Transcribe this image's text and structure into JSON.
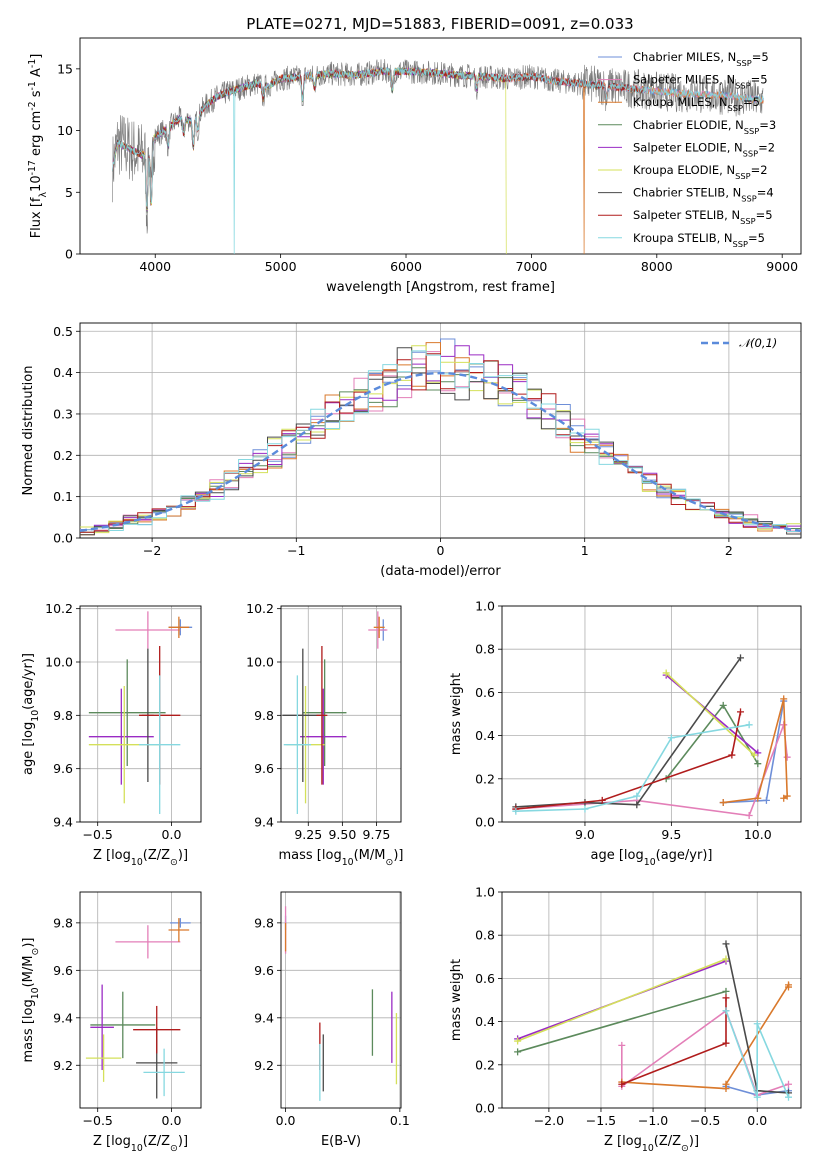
{
  "title": "PLATE=0271, MJD=51883, FIBERID=0091, z=0.033",
  "colors": {
    "Chabrier MILES": "#6e8fd8",
    "Salpeter MILES": "#e37fb8",
    "Kroupa MILES": "#d9792c",
    "Chabrier ELODIE": "#5c8a5c",
    "Salpeter ELODIE": "#9a2bc4",
    "Kroupa ELODIE": "#d4e05a",
    "Chabrier STELIB": "#4a4a4a",
    "Salpeter STELIB": "#b01c1c",
    "Kroupa STELIB": "#86d8e0",
    "normal": "#5b8bdb",
    "grid": "#b0b0b0"
  },
  "chart_data": [
    {
      "id": "spectrum",
      "type": "line",
      "xlabel": "wavelength [Angstrom, rest frame]",
      "ylabel": "Flux [f$_\\lambda$$10^{-17}$ erg cm$^{-2}$ s$^{-1}$ A$^{-1}$]",
      "xlim": [
        3400,
        9150
      ],
      "ylim": [
        0,
        17.5
      ],
      "xticks": [
        4000,
        5000,
        6000,
        7000,
        8000,
        9000
      ],
      "yticks": [
        0,
        5,
        10,
        15
      ],
      "grid": false,
      "legend_position": "top-right",
      "continuum": {
        "x": [
          3650,
          3700,
          3800,
          3900,
          4000,
          4100,
          4200,
          4300,
          4400,
          4500,
          4600,
          4700,
          4800,
          4900,
          5000,
          5200,
          5400,
          5600,
          5800,
          6000,
          6200,
          6400,
          6600,
          6800,
          7000,
          7200,
          7400,
          7600,
          7800,
          8000,
          8200,
          8400,
          8600,
          8800
        ],
        "y": [
          6.5,
          9.0,
          8.5,
          8.0,
          9.5,
          10.2,
          11.0,
          10.8,
          12.0,
          12.8,
          13.2,
          13.5,
          13.8,
          13.6,
          14.2,
          14.4,
          14.6,
          14.5,
          14.8,
          14.8,
          14.7,
          14.5,
          14.4,
          14.2,
          14.4,
          14.0,
          13.8,
          13.6,
          13.4,
          13.2,
          13.0,
          12.9,
          12.8,
          12.5
        ]
      },
      "series": [
        {
          "name": "Chabrier MILES, N$_{SSP}$=5",
          "xrange": [
            3660,
            8850
          ]
        },
        {
          "name": "Salpeter MILES, N$_{SSP}$=5",
          "xrange": [
            3660,
            8850
          ]
        },
        {
          "name": "Kroupa MILES, N$_{SSP}$=5",
          "xrange": [
            3660,
            8850
          ],
          "dropout_at": 7420
        },
        {
          "name": "Chabrier ELODIE, N$_{SSP}$=3",
          "xrange": [
            3660,
            6800
          ]
        },
        {
          "name": "Salpeter ELODIE, N$_{SSP}$=2",
          "xrange": [
            3660,
            6800
          ]
        },
        {
          "name": "Kroupa ELODIE, N$_{SSP}$=2",
          "xrange": [
            3660,
            6800
          ],
          "dropout_at": 6800
        },
        {
          "name": "Chabrier STELIB, N$_{SSP}$=4",
          "xrange": [
            3660,
            7900
          ]
        },
        {
          "name": "Salpeter STELIB, N$_{SSP}$=5",
          "xrange": [
            3660,
            7900
          ]
        },
        {
          "name": "Kroupa STELIB, N$_{SSP}$=5",
          "xrange": [
            3660,
            8850
          ],
          "dropout_at": 4630
        }
      ]
    },
    {
      "id": "residuals",
      "type": "bar",
      "xlabel": "(data-model)/error",
      "ylabel": "Normed distribution",
      "xlim": [
        -2.5,
        2.5
      ],
      "ylim": [
        0,
        0.52
      ],
      "xticks": [
        -2,
        -1,
        0,
        1,
        2
      ],
      "yticks": [
        0.0,
        0.1,
        0.2,
        0.3,
        0.4,
        0.5
      ],
      "grid": true,
      "legend_position": "top-right",
      "normal_label": "$\\mathcal{N}(0,1)$",
      "bin_width": 0.1,
      "histogram": "step histograms of (data-model)/error per model, close to a unit normal"
    },
    {
      "id": "age_vs_Z",
      "type": "scatter",
      "xlabel": "Z [$\\log_{10}(Z/Z_\\odot)$]",
      "ylabel": "age  [$\\log_{10}(age/yr)$]",
      "xlim": [
        -0.62,
        0.2
      ],
      "ylim": [
        9.4,
        10.21
      ],
      "xticks": [
        -0.5,
        0.0
      ],
      "yticks": [
        9.4,
        9.6,
        9.8,
        10.0,
        10.2
      ],
      "grid": true,
      "points": [
        {
          "model": "Chabrier MILES",
          "x": 0.06,
          "xerr": 0.08,
          "y": 10.13,
          "yerr": 0.03
        },
        {
          "model": "Salpeter MILES",
          "x": -0.16,
          "xerr": 0.22,
          "y": 10.12,
          "yerr": 0.07
        },
        {
          "model": "Kroupa MILES",
          "x": 0.05,
          "xerr": 0.07,
          "y": 10.13,
          "yerr": 0.04
        },
        {
          "model": "Chabrier ELODIE",
          "x": -0.3,
          "xerr": 0.26,
          "y": 9.81,
          "yerr": 0.2
        },
        {
          "model": "Salpeter ELODIE",
          "x": -0.34,
          "xerr": 0.22,
          "y": 9.72,
          "yerr": 0.18
        },
        {
          "model": "Kroupa ELODIE",
          "x": -0.32,
          "xerr": 0.24,
          "y": 9.69,
          "yerr": 0.22
        },
        {
          "model": "Chabrier STELIB",
          "x": -0.16,
          "xerr": 0.04,
          "y": 9.8,
          "yerr": 0.25
        },
        {
          "model": "Salpeter STELIB",
          "x": -0.08,
          "xerr": 0.14,
          "y": 9.8,
          "yerr": 0.26
        },
        {
          "model": "Kroupa STELIB",
          "x": -0.08,
          "xerr": 0.14,
          "y": 9.69,
          "yerr": 0.26
        }
      ]
    },
    {
      "id": "age_vs_mass",
      "type": "scatter",
      "xlabel": "mass [$\\log_{10}(M/M_\\odot)$]",
      "ylabel": "",
      "xlim": [
        9.05,
        9.93
      ],
      "ylim": [
        9.4,
        10.21
      ],
      "xticks": [
        9.25,
        9.5,
        9.75
      ],
      "yticks": [
        9.4,
        9.6,
        9.8,
        10.0,
        10.2
      ],
      "grid": true,
      "points": [
        {
          "model": "Chabrier MILES",
          "x": 9.8,
          "xerr": 0.02,
          "y": 10.12,
          "yerr": 0.04
        },
        {
          "model": "Salpeter MILES",
          "x": 9.76,
          "xerr": 0.07,
          "y": 10.12,
          "yerr": 0.07
        },
        {
          "model": "Kroupa MILES",
          "x": 9.77,
          "xerr": 0.04,
          "y": 10.13,
          "yerr": 0.04
        },
        {
          "model": "Chabrier ELODIE",
          "x": 9.37,
          "xerr": 0.16,
          "y": 9.81,
          "yerr": 0.2
        },
        {
          "model": "Salpeter ELODIE",
          "x": 9.36,
          "xerr": 0.17,
          "y": 9.72,
          "yerr": 0.18
        },
        {
          "model": "Kroupa ELODIE",
          "x": 9.23,
          "xerr": 0.14,
          "y": 9.69,
          "yerr": 0.22
        },
        {
          "model": "Chabrier STELIB",
          "x": 9.21,
          "xerr": 0.15,
          "y": 9.8,
          "yerr": 0.25
        },
        {
          "model": "Salpeter STELIB",
          "x": 9.35,
          "xerr": 0.04,
          "y": 9.8,
          "yerr": 0.26
        },
        {
          "model": "Kroupa STELIB",
          "x": 9.17,
          "xerr": 0.1,
          "y": 9.69,
          "yerr": 0.26
        }
      ]
    },
    {
      "id": "weight_vs_age",
      "type": "line",
      "xlabel": "age  [$\\log_{10}(age/yr)$]",
      "ylabel": "mass weight",
      "xlim": [
        8.52,
        10.25
      ],
      "ylim": [
        0.0,
        1.0
      ],
      "xticks": [
        9.0,
        9.5,
        10.0
      ],
      "yticks": [
        0.0,
        0.2,
        0.4,
        0.6,
        0.8,
        1.0
      ],
      "grid": true,
      "series": [
        {
          "model": "Chabrier MILES",
          "x": [
            9.8,
            10.05,
            10.15
          ],
          "y": [
            0.09,
            0.1,
            0.56
          ]
        },
        {
          "model": "Salpeter MILES",
          "x": [
            8.6,
            9.3,
            9.95,
            10.15,
            10.17
          ],
          "y": [
            0.06,
            0.1,
            0.03,
            0.45,
            0.3
          ]
        },
        {
          "model": "Kroupa MILES",
          "x": [
            9.8,
            10.0,
            10.15,
            10.17,
            10.15
          ],
          "y": [
            0.09,
            0.11,
            0.57,
            0.12,
            0.11
          ]
        },
        {
          "model": "Chabrier ELODIE",
          "x": [
            9.47,
            9.8,
            10.0
          ],
          "y": [
            0.2,
            0.54,
            0.27
          ]
        },
        {
          "model": "Salpeter ELODIE",
          "x": [
            9.47,
            10.0
          ],
          "y": [
            0.68,
            0.32
          ]
        },
        {
          "model": "Kroupa ELODIE",
          "x": [
            9.47,
            9.98
          ],
          "y": [
            0.69,
            0.31
          ]
        },
        {
          "model": "Chabrier STELIB",
          "x": [
            8.6,
            9.0,
            9.3,
            9.9
          ],
          "y": [
            0.07,
            0.09,
            0.08,
            0.76
          ]
        },
        {
          "model": "Salpeter STELIB",
          "x": [
            8.6,
            9.1,
            9.85,
            9.9
          ],
          "y": [
            0.06,
            0.1,
            0.31,
            0.51
          ]
        },
        {
          "model": "Kroupa STELIB",
          "x": [
            8.6,
            9.0,
            9.3,
            9.5,
            9.95
          ],
          "y": [
            0.05,
            0.06,
            0.12,
            0.39,
            0.45
          ]
        }
      ]
    },
    {
      "id": "mass_vs_Z",
      "type": "scatter",
      "xlabel": "Z [$\\log_{10}(Z/Z_\\odot)$]",
      "ylabel": "mass [$\\log_{10}(M/M_\\odot)$]",
      "xlim": [
        -0.62,
        0.2
      ],
      "ylim": [
        9.02,
        9.93
      ],
      "xticks": [
        -0.5,
        0.0
      ],
      "yticks": [
        9.2,
        9.4,
        9.6,
        9.8
      ],
      "grid": true,
      "points": [
        {
          "model": "Chabrier MILES",
          "x": 0.06,
          "xerr": 0.07,
          "y": 9.8,
          "yerr": 0.02
        },
        {
          "model": "Salpeter MILES",
          "x": -0.16,
          "xerr": 0.22,
          "y": 9.72,
          "yerr": 0.07
        },
        {
          "model": "Kroupa MILES",
          "x": 0.05,
          "xerr": 0.07,
          "y": 9.77,
          "yerr": 0.05
        },
        {
          "model": "Chabrier ELODIE",
          "x": -0.33,
          "xerr": 0.22,
          "y": 9.37,
          "yerr": 0.14
        },
        {
          "model": "Salpeter ELODIE",
          "x": -0.47,
          "xerr": 0.08,
          "y": 9.36,
          "yerr": 0.18
        },
        {
          "model": "Kroupa ELODIE",
          "x": -0.46,
          "xerr": 0.12,
          "y": 9.23,
          "yerr": 0.1
        },
        {
          "model": "Chabrier STELIB",
          "x": -0.1,
          "xerr": 0.14,
          "y": 9.21,
          "yerr": 0.15
        },
        {
          "model": "Salpeter STELIB",
          "x": -0.1,
          "xerr": 0.16,
          "y": 9.35,
          "yerr": 0.1
        },
        {
          "model": "Kroupa STELIB",
          "x": -0.05,
          "xerr": 0.14,
          "y": 9.17,
          "yerr": 0.1
        }
      ]
    },
    {
      "id": "mass_vs_ebv",
      "type": "scatter",
      "xlabel": "E(B-V)",
      "ylabel": "",
      "xlim": [
        -0.004,
        0.101
      ],
      "ylim": [
        9.02,
        9.93
      ],
      "xticks": [
        0.0,
        0.1
      ],
      "yticks": [
        9.2,
        9.4,
        9.6,
        9.8
      ],
      "grid": true,
      "points": [
        {
          "model": "Chabrier MILES",
          "x": 0.0,
          "y": 9.8,
          "yerr": 0.03
        },
        {
          "model": "Salpeter MILES",
          "x": 0.0,
          "y": 9.77,
          "yerr": 0.1
        },
        {
          "model": "Kroupa MILES",
          "x": 0.0,
          "y": 9.74,
          "yerr": 0.06
        },
        {
          "model": "Chabrier ELODIE",
          "x": 0.076,
          "y": 9.38,
          "yerr": 0.14
        },
        {
          "model": "Salpeter ELODIE",
          "x": 0.093,
          "y": 9.36,
          "yerr": 0.15
        },
        {
          "model": "Kroupa ELODIE",
          "x": 0.097,
          "y": 9.27,
          "yerr": 0.15
        },
        {
          "model": "Chabrier STELIB",
          "x": 0.033,
          "y": 9.21,
          "yerr": 0.12
        },
        {
          "model": "Salpeter STELIB",
          "x": 0.03,
          "y": 9.28,
          "yerr": 0.1
        },
        {
          "model": "Kroupa STELIB",
          "x": 0.03,
          "y": 9.17,
          "yerr": 0.12
        }
      ]
    },
    {
      "id": "weight_vs_Z",
      "type": "line",
      "xlabel": "Z [$\\log_{10}(Z/Z_\\odot)$]",
      "ylabel": "mass weight",
      "xlim": [
        -2.45,
        0.42
      ],
      "ylim": [
        0.0,
        1.0
      ],
      "xticks": [
        -2.0,
        -1.5,
        -1.0,
        -0.5,
        0.0
      ],
      "yticks": [
        0.0,
        0.2,
        0.4,
        0.6,
        0.8,
        1.0
      ],
      "grid": true,
      "series": [
        {
          "model": "Chabrier MILES",
          "x": [
            -0.3,
            0.0,
            0.3
          ],
          "y": [
            0.1,
            0.06,
            0.08
          ]
        },
        {
          "model": "Salpeter MILES",
          "x": [
            -1.3,
            -1.3,
            -0.3,
            0.0,
            0.3
          ],
          "y": [
            0.29,
            0.1,
            0.45,
            0.06,
            0.11
          ]
        },
        {
          "model": "Kroupa MILES",
          "x": [
            -1.3,
            -0.3,
            -0.3,
            0.3,
            0.3
          ],
          "y": [
            0.12,
            0.09,
            0.11,
            0.57,
            0.56
          ]
        },
        {
          "model": "Chabrier ELODIE",
          "x": [
            -2.3,
            -0.3
          ],
          "y": [
            0.26,
            0.54
          ]
        },
        {
          "model": "Salpeter ELODIE",
          "x": [
            -2.3,
            -0.3
          ],
          "y": [
            0.32,
            0.68
          ]
        },
        {
          "model": "Kroupa ELODIE",
          "x": [
            -2.3,
            -0.3
          ],
          "y": [
            0.31,
            0.69
          ]
        },
        {
          "model": "Chabrier STELIB",
          "x": [
            -0.3,
            0.0,
            0.3
          ],
          "y": [
            0.76,
            0.08,
            0.07
          ]
        },
        {
          "model": "Salpeter STELIB",
          "x": [
            -1.3,
            -0.3,
            -0.3
          ],
          "y": [
            0.11,
            0.3,
            0.51
          ]
        },
        {
          "model": "Kroupa STELIB",
          "x": [
            -0.3,
            0.0,
            0.0,
            0.3
          ],
          "y": [
            0.45,
            0.05,
            0.39,
            0.05
          ]
        }
      ]
    }
  ]
}
